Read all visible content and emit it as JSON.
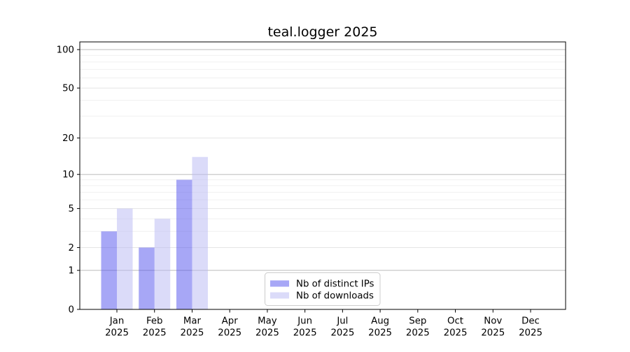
{
  "chart_data": {
    "type": "bar",
    "title": "teal.logger 2025",
    "categories": [
      "Jan",
      "Feb",
      "Mar",
      "Apr",
      "May",
      "Jun",
      "Jul",
      "Aug",
      "Sep",
      "Oct",
      "Nov",
      "Dec"
    ],
    "x_year_label": "2025",
    "series": [
      {
        "name": "Nb of distinct IPs",
        "color": "#5050ee",
        "fill_opacity": 0.5,
        "values": [
          3,
          2,
          9,
          0,
          0,
          0,
          0,
          0,
          0,
          0,
          0,
          0
        ]
      },
      {
        "name": "Nb of downloads",
        "color": "#b8b8f4",
        "fill_opacity": 0.5,
        "values": [
          5,
          4,
          14,
          0,
          0,
          0,
          0,
          0,
          0,
          0,
          0,
          0
        ]
      }
    ],
    "yscale": "log1p",
    "ytick_labels": [
      0,
      1,
      2,
      5,
      10,
      20,
      50,
      100
    ],
    "ylim": [
      0,
      100
    ],
    "grid": "both",
    "legend_position": "lower center"
  }
}
